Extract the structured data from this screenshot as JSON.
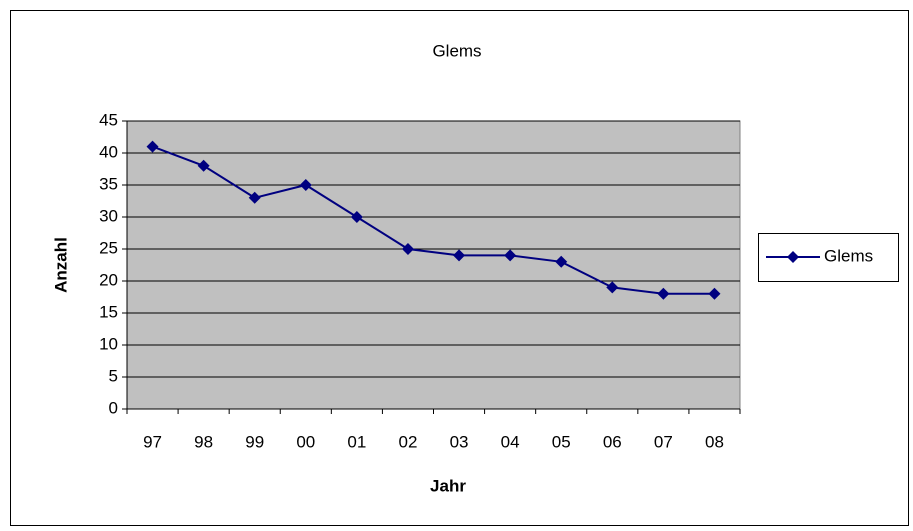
{
  "chart_data": {
    "type": "line",
    "title": "Glems",
    "x_label": "Jahr",
    "y_label": "Anzahl",
    "categories": [
      "97",
      "98",
      "99",
      "00",
      "01",
      "02",
      "03",
      "04",
      "05",
      "06",
      "07",
      "08"
    ],
    "series": [
      {
        "name": "Glems",
        "color": "#000080",
        "values": [
          41,
          38,
          33,
          35,
          30,
          25,
          24,
          24,
          23,
          19,
          18,
          18
        ]
      }
    ],
    "ylim": [
      0,
      45
    ],
    "yticks": [
      0,
      5,
      10,
      15,
      20,
      25,
      30,
      35,
      40,
      45
    ],
    "grid": true,
    "legend": "right",
    "plot_background": "#c0c0c0"
  }
}
